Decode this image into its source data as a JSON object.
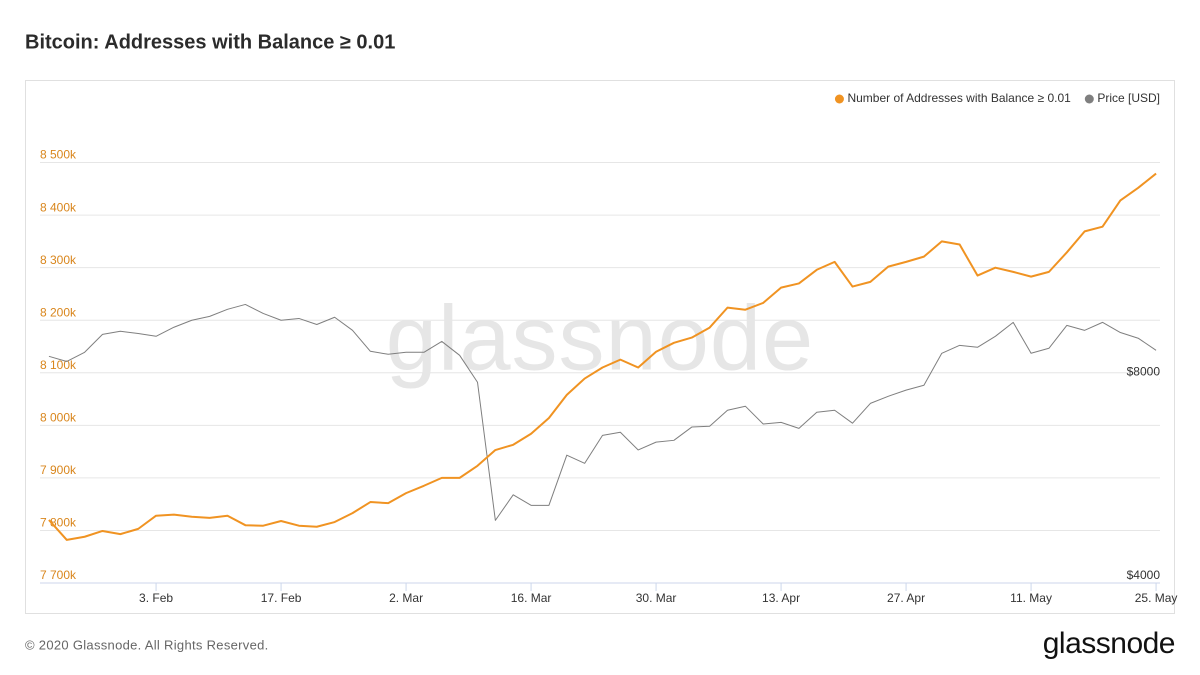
{
  "chart_data": {
    "type": "line",
    "title": "Bitcoin: Addresses with Balance ≥ 0.01",
    "watermark": "glassnode",
    "footer": "© 2020 Glassnode. All Rights Reserved.",
    "logo": "glassnode",
    "legend": "top-right",
    "grid": true,
    "categories": [
      null,
      null,
      null,
      null,
      null,
      null,
      "3. Feb",
      null,
      null,
      null,
      null,
      null,
      null,
      "17. Feb",
      null,
      null,
      null,
      null,
      null,
      null,
      "2. Mar",
      null,
      null,
      null,
      null,
      null,
      null,
      "16. Mar",
      null,
      null,
      null,
      null,
      null,
      null,
      "30. Mar",
      null,
      null,
      null,
      null,
      null,
      null,
      "13. Apr",
      null,
      null,
      null,
      null,
      null,
      null,
      "27. Apr",
      null,
      null,
      null,
      null,
      null,
      null,
      "11. May",
      null,
      null,
      null,
      null,
      null,
      null,
      "25. May"
    ],
    "ylim": [
      7700000,
      8600000
    ],
    "yticks": [
      {
        "value": 7700000,
        "label": "7 700k"
      },
      {
        "value": 7800000,
        "label": "7 800k"
      },
      {
        "value": 7900000,
        "label": "7 900k"
      },
      {
        "value": 8000000,
        "label": "8 000k"
      },
      {
        "value": 8100000,
        "label": "8 100k"
      },
      {
        "value": 8200000,
        "label": "8 200k"
      },
      {
        "value": 8300000,
        "label": "8 300k"
      },
      {
        "value": 8400000,
        "label": "8 400k"
      },
      {
        "value": 8500000,
        "label": "8 500k"
      }
    ],
    "y2lim": [
      4000,
      20000
    ],
    "y2log": true,
    "y2ticks": [
      {
        "value": 4000,
        "label": "$4000"
      },
      {
        "value": 8000,
        "label": "$8000"
      }
    ],
    "series": [
      {
        "name": "Number of Addresses with Balance ≥ 0.01",
        "color": "#f09322",
        "axis": "y",
        "values": [
          7820000,
          7782000,
          7788000,
          7799000,
          7793000,
          7803000,
          7828000,
          7830000,
          7826000,
          7824000,
          7828000,
          7810000,
          7809000,
          7818000,
          7809000,
          7807000,
          7816000,
          7833000,
          7854000,
          7852000,
          7871000,
          7885000,
          7900000,
          7900000,
          7923000,
          7953000,
          7963000,
          7984000,
          8014000,
          8058000,
          8089000,
          8110000,
          8125000,
          8110000,
          8140000,
          8157000,
          8167000,
          8186000,
          8224000,
          8220000,
          8233000,
          8262000,
          8270000,
          8296000,
          8311000,
          8264000,
          8273000,
          8302000,
          8311000,
          8321000,
          8350000,
          8344000,
          8285000,
          8300000,
          8292000,
          8283000,
          8292000,
          8329000,
          8369000,
          8378000,
          8428000,
          8452000,
          8479000
        ]
      },
      {
        "name": "Price [USD]",
        "color": "#7f7f7f",
        "axis": "y2",
        "values": [
          8650,
          8500,
          8770,
          9320,
          9420,
          9350,
          9260,
          9550,
          9780,
          9910,
          10150,
          10320,
          10010,
          9780,
          9840,
          9640,
          9880,
          9450,
          8800,
          8710,
          8770,
          8770,
          9100,
          8680,
          7920,
          4950,
          5400,
          5210,
          5210,
          6180,
          6010,
          6610,
          6680,
          6290,
          6460,
          6500,
          6800,
          6820,
          7200,
          7300,
          6870,
          6910,
          6770,
          7150,
          7200,
          6890,
          7370,
          7550,
          7710,
          7840,
          8740,
          8980,
          8920,
          9260,
          9710,
          8740,
          8890,
          9610,
          9450,
          9710,
          9380,
          9200,
          8830
        ]
      }
    ]
  }
}
